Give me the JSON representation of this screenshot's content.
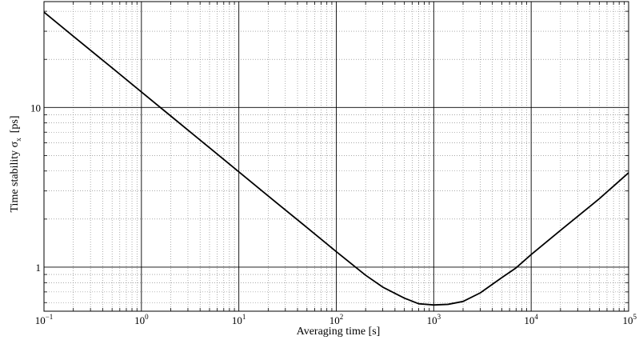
{
  "chart_data": {
    "type": "line",
    "xscale": "log",
    "yscale": "log",
    "xlim": [
      0.1,
      100000
    ],
    "ylim": [
      0.53,
      46
    ],
    "xlabel": "Averaging time [s]",
    "ylabel_main": "Time stability σ",
    "ylabel_sub": "x",
    "ylabel_unit": "[ps]",
    "xticks": [
      {
        "value": 0.1,
        "base": "10",
        "exp": "−1"
      },
      {
        "value": 1,
        "base": "10",
        "exp": "0"
      },
      {
        "value": 10,
        "base": "10",
        "exp": "1"
      },
      {
        "value": 100,
        "base": "10",
        "exp": "2"
      },
      {
        "value": 1000,
        "base": "10",
        "exp": "3"
      },
      {
        "value": 10000,
        "base": "10",
        "exp": "4"
      },
      {
        "value": 100000,
        "base": "10",
        "exp": "5"
      }
    ],
    "yticks": [
      {
        "value": 1,
        "label": "1"
      },
      {
        "value": 10,
        "label": "10"
      }
    ],
    "grid": true,
    "series": [
      {
        "color": "#000000",
        "x": [
          0.1,
          0.2,
          0.5,
          1,
          2,
          5,
          10,
          20,
          50,
          100,
          200,
          300,
          500,
          700,
          1000,
          1400,
          2000,
          3000,
          5000,
          7000,
          10000,
          20000,
          50000,
          100000
        ],
        "y": [
          39.5,
          27.9,
          17.7,
          12.5,
          8.84,
          5.59,
          3.95,
          2.79,
          1.77,
          1.25,
          0.89,
          0.75,
          0.64,
          0.59,
          0.58,
          0.585,
          0.61,
          0.69,
          0.86,
          0.99,
          1.2,
          1.7,
          2.68,
          3.9
        ]
      }
    ]
  }
}
